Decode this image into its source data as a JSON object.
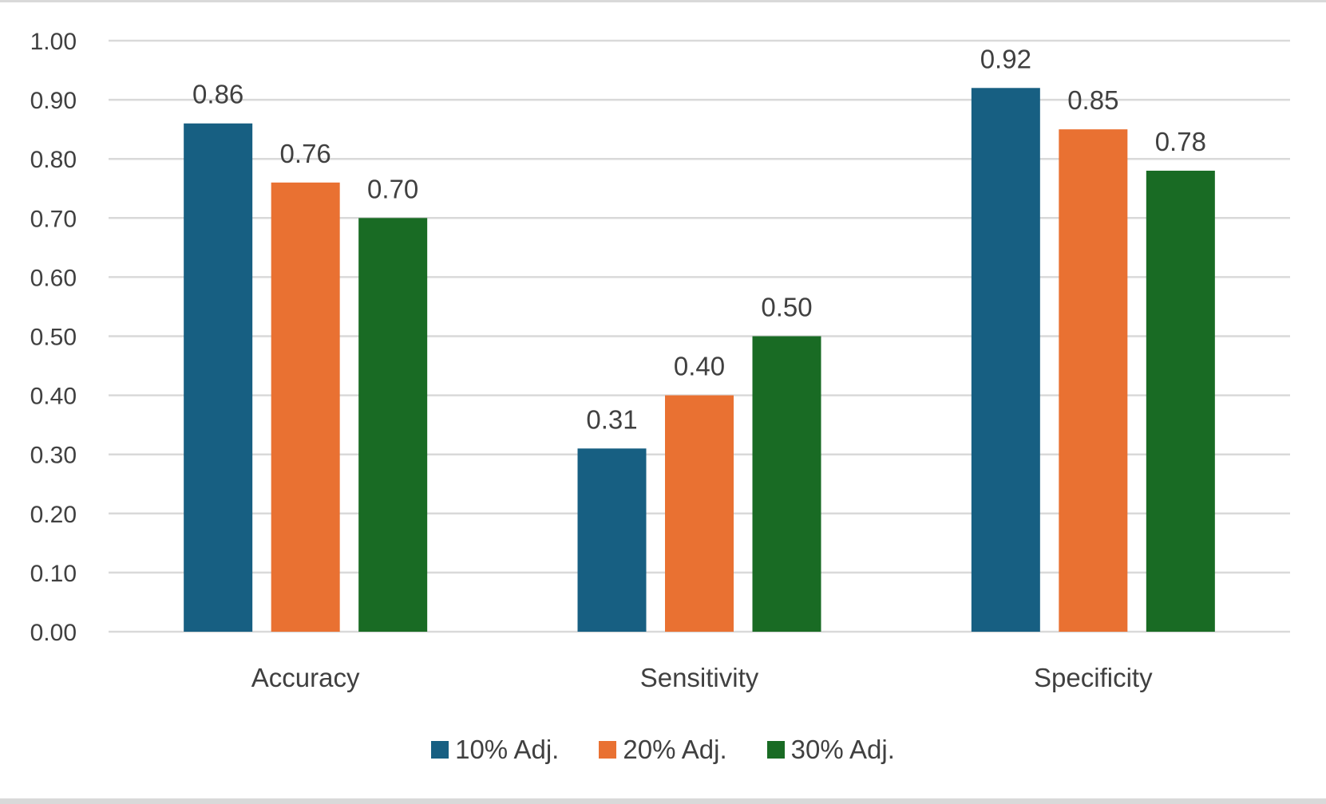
{
  "chart_data": {
    "type": "bar",
    "title": "",
    "xlabel": "",
    "ylabel": "",
    "categories": [
      "Accuracy",
      "Sensitivity",
      "Specificity"
    ],
    "series": [
      {
        "name": "10% Adj.",
        "color": "#175f82",
        "values": [
          0.86,
          0.31,
          0.92
        ]
      },
      {
        "name": "20% Adj.",
        "color": "#e97132",
        "values": [
          0.76,
          0.4,
          0.85
        ]
      },
      {
        "name": "30% Adj.",
        "color": "#196b24",
        "values": [
          0.7,
          0.5,
          0.78
        ]
      }
    ],
    "data_labels": [
      [
        "0.86",
        "0.31",
        "0.92"
      ],
      [
        "0.76",
        "0.40",
        "0.85"
      ],
      [
        "0.70",
        "0.50",
        "0.78"
      ]
    ],
    "ylim": [
      0,
      1
    ],
    "yticks": [
      "0.00",
      "0.10",
      "0.20",
      "0.30",
      "0.40",
      "0.50",
      "0.60",
      "0.70",
      "0.80",
      "0.90",
      "1.00"
    ],
    "grid": true,
    "legend_position": "bottom",
    "gridline_color": "#d9d9d9",
    "text_color": "#404040"
  }
}
